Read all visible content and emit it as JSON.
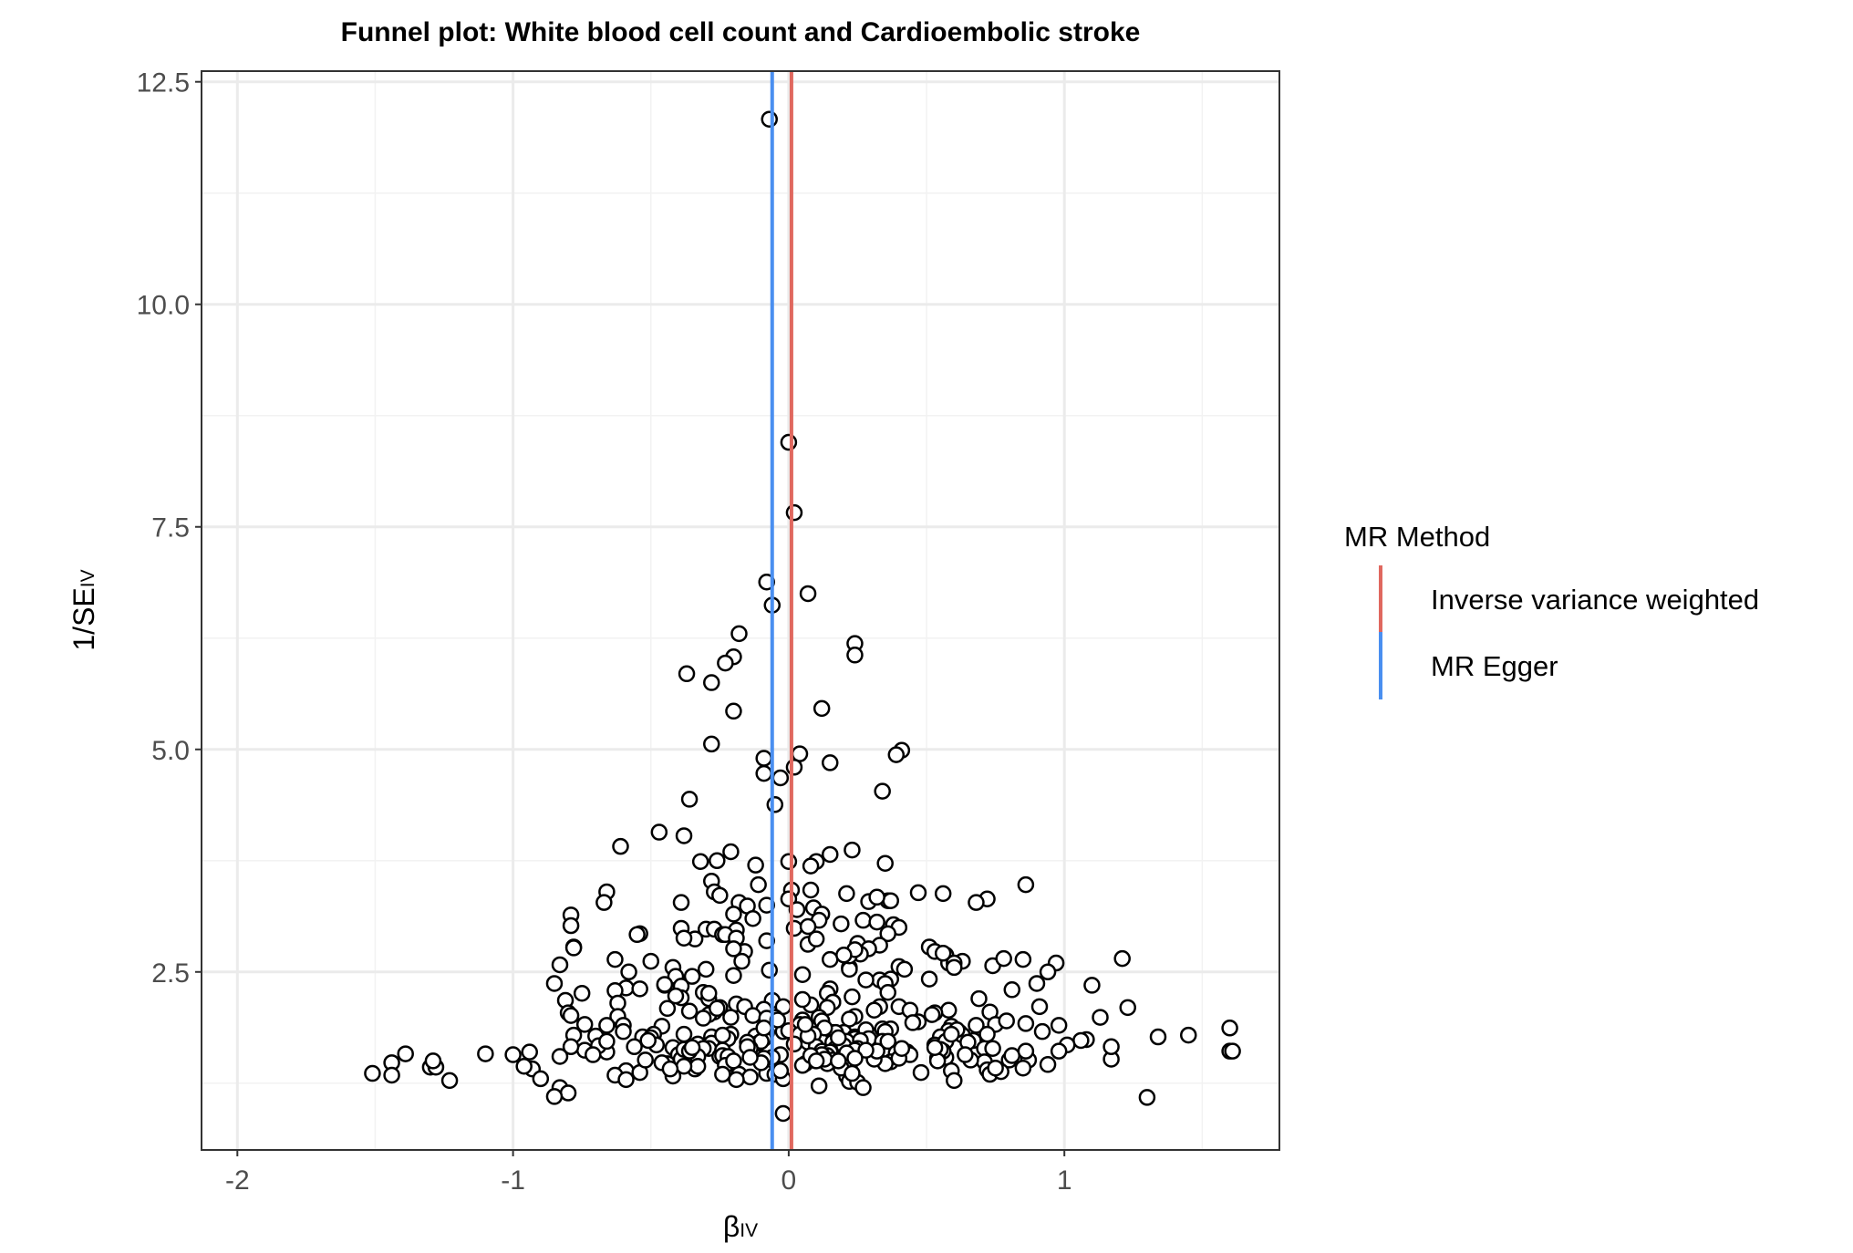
{
  "chart_data": {
    "type": "scatter",
    "title": "Funnel plot: White blood cell count and Cardioembolic stroke",
    "xlabel": {
      "main": "β",
      "sub": "IV"
    },
    "ylabel": {
      "main": "1/SE",
      "sub": "IV"
    },
    "xlim": [
      -2.13,
      1.78
    ],
    "ylim": [
      0.5,
      12.62
    ],
    "x_ticks": [
      {
        "value": -2,
        "label": "-2"
      },
      {
        "value": -1,
        "label": "-1"
      },
      {
        "value": 0,
        "label": "0"
      },
      {
        "value": 1,
        "label": "1"
      }
    ],
    "y_ticks": [
      {
        "value": 2.5,
        "label": "2.5"
      },
      {
        "value": 5.0,
        "label": "5.0"
      },
      {
        "value": 7.5,
        "label": "7.5"
      },
      {
        "value": 10.0,
        "label": "10.0"
      },
      {
        "value": 12.5,
        "label": "12.5"
      }
    ],
    "grid": true,
    "legend": {
      "title": "MR Method",
      "position": "right",
      "entries": [
        {
          "name": "Inverse variance weighted",
          "color": "#e0685f"
        },
        {
          "name": "MR Egger",
          "color": "#4a8ff0"
        }
      ]
    },
    "vlines": [
      {
        "name": "Inverse variance weighted",
        "x": 0.01,
        "color": "#e0685f"
      },
      {
        "name": "MR Egger",
        "x": -0.06,
        "color": "#4a8ff0"
      }
    ],
    "points_x": [
      -0.07,
      0.0,
      0.02,
      -0.08,
      0.07,
      -0.06,
      0.24,
      -0.18,
      -0.2,
      0.24,
      -0.37,
      -0.23,
      -0.28,
      0.12,
      -0.2,
      0.41,
      0.39,
      0.04,
      -0.28,
      -0.09,
      0.15,
      -0.09,
      0.02,
      -0.03,
      0.34,
      -0.36,
      -0.05,
      -0.47,
      -0.38,
      -0.61,
      0.15,
      0.23,
      -0.21,
      0.0,
      -0.26,
      0.1,
      -0.32,
      -0.12,
      -0.28,
      0.35,
      0.08,
      0.86,
      -0.66,
      0.47,
      0.56,
      0.72,
      0.68,
      -0.27,
      0.21,
      0.01,
      0.36,
      -0.11,
      0.08,
      -0.39,
      -0.79,
      0.09,
      0.29,
      -0.25,
      -0.18,
      0.0,
      0.37,
      -0.08,
      0.32,
      -0.15,
      -0.2,
      0.12,
      0.03,
      -0.67,
      -0.3,
      0.19,
      -0.13,
      0.27,
      0.11,
      0.38,
      -0.39,
      -0.54,
      -0.27,
      0.4,
      -0.79,
      -0.19,
      0.02,
      0.36,
      0.32,
      -0.24,
      0.07,
      -0.78,
      0.51,
      0.53,
      0.57,
      0.85,
      0.25,
      0.63,
      0.74,
      1.21,
      0.97,
      -0.23,
      -0.55,
      -0.19,
      0.58,
      -0.83,
      -0.34,
      -0.63,
      0.22,
      0.33,
      -0.08,
      0.4,
      0.78,
      0.6,
      -0.78,
      -0.38,
      0.15,
      0.51,
      0.94,
      0.07,
      0.29,
      -0.16,
      0.22,
      0.42,
      0.56,
      0.26,
      0.1,
      -0.5,
      -0.2,
      -0.42,
      -0.41,
      0.22,
      0.6,
      1.1,
      0.24,
      0.15,
      0.81,
      -0.85,
      -0.31,
      -0.35,
      0.05,
      0.33,
      0.37,
      -0.39,
      -0.07,
      0.2,
      -0.17,
      -0.3,
      0.35,
      0.14,
      0.9,
      -0.58,
      -0.59,
      -0.75,
      -0.54,
      -0.2,
      0.28,
      -0.45,
      -0.45,
      -0.39,
      0.36,
      -0.63,
      0.16,
      -0.29,
      -0.62,
      -0.81,
      0.16,
      0.69,
      0.08,
      -0.06,
      0.33,
      0.14,
      0.58,
      1.23,
      -0.8,
      0.4,
      -0.25,
      0.53,
      0.05,
      -0.27,
      -0.19,
      -0.62,
      -0.41,
      0.23,
      -0.79,
      -0.02,
      0.91,
      0.73,
      -0.16,
      -0.09,
      0.24,
      -0.13,
      0.31,
      0.44,
      -0.36,
      -0.29,
      -0.44,
      0.52,
      1.13,
      -0.31,
      -0.05,
      0.11,
      0.68,
      0.75,
      0.05,
      0.22,
      0.47,
      -0.08,
      0.86,
      0.79,
      -0.74,
      -0.46,
      0.59,
      0.98,
      -0.21,
      0.34,
      1.6,
      0.04,
      0.12,
      -0.78,
      0.2,
      -0.02,
      0.16,
      0.37,
      -0.08,
      -0.66,
      0.35,
      0.62,
      0.17,
      0.45,
      -0.28,
      0.13,
      0.58,
      -0.38,
      -0.21,
      0.09,
      0.63,
      -0.6,
      0.24,
      0.61,
      -0.6,
      0.0,
      -0.22,
      -0.53,
      -0.33,
      0.28,
      0.04,
      -0.09,
      -0.49,
      0.24,
      1.45,
      -0.7,
      0.92,
      0.07,
      0.29,
      0.34,
      1.08,
      0.55,
      -0.12,
      -0.11,
      0.16,
      0.24,
      -0.1,
      1.06,
      0.53,
      0.67,
      -0.28,
      0.02,
      0.36,
      -0.56,
      -0.15,
      0.1,
      0.21,
      -0.5,
      1.01,
      1.6,
      0.57,
      -0.14,
      -0.29,
      -0.74,
      0.65,
      -0.48,
      -0.15,
      -0.42,
      -0.31,
      0.12,
      0.43,
      -0.94,
      0.26,
      -0.79,
      0.17,
      -0.66,
      -0.03,
      0.71,
      -0.25,
      0.2,
      0.15,
      -1.0,
      0.14,
      0.25,
      0.39,
      -0.38,
      0.57,
      0.74,
      0.44,
      0.98,
      -0.33,
      0.56,
      0.8,
      0.54,
      -0.24,
      -0.24,
      0.12,
      -0.4,
      0.16,
      0.37,
      -0.44,
      -1.44,
      0.94,
      -0.83,
      0.87,
      -0.22,
      -0.06,
      0.4,
      0.71,
      -0.23,
      -0.46,
      0.06,
      -1.3,
      0.14,
      -0.34,
      -0.39,
      0.72,
      -0.08,
      0.22,
      -0.33,
      0.35,
      -0.38,
      -1.28,
      0.05,
      -1.29,
      -1.51,
      -0.93,
      -0.59,
      -0.18,
      -0.04,
      0.59,
      -1.44,
      0.73,
      -0.05,
      0.48,
      -0.54,
      -0.9,
      0.21,
      -1.23,
      -0.14,
      -0.24,
      -0.63,
      -0.42,
      0.6,
      -0.59,
      -0.02,
      0.22,
      -0.19,
      0.25,
      -0.83,
      0.11,
      0.27,
      -0.8,
      -0.85,
      1.3,
      -0.02,
      -0.29,
      -0.06,
      0.19,
      -0.69,
      -0.38,
      1.34,
      -0.26,
      0.41,
      1.17,
      -0.09,
      0.12,
      0.24,
      0.72,
      -0.1,
      1.61,
      0.55,
      0.54,
      0.85,
      -0.52,
      -0.36,
      0.31,
      0.32,
      -0.71,
      0.66,
      0.21,
      -0.14,
      -0.24,
      0.28,
      0.08,
      -0.2,
      -0.43,
      0.24,
      0.81,
      0.07,
      -0.66,
      -0.35,
      0.13,
      -1.39,
      -0.09,
      -0.04,
      0.06,
      -1.1,
      -0.03,
      0.18,
      0.53,
      0.18,
      -0.96,
      0.59,
      -0.51,
      0.77,
      1.17,
      0.86,
      0.1,
      0.23,
      0.64,
      0.75
    ],
    "points_y": [
      12.08,
      8.45,
      7.66,
      6.88,
      6.75,
      6.62,
      6.19,
      6.3,
      6.04,
      6.06,
      5.85,
      5.97,
      5.75,
      5.46,
      5.43,
      4.99,
      4.94,
      4.95,
      5.06,
      4.9,
      4.85,
      4.73,
      4.8,
      4.68,
      4.53,
      4.44,
      4.38,
      4.07,
      4.03,
      3.91,
      3.82,
      3.87,
      3.85,
      3.74,
      3.75,
      3.74,
      3.74,
      3.7,
      3.52,
      3.72,
      3.69,
      3.48,
      3.4,
      3.39,
      3.38,
      3.32,
      3.28,
      3.4,
      3.38,
      3.42,
      3.3,
      3.48,
      3.42,
      3.28,
      3.14,
      3.22,
      3.29,
      3.36,
      3.28,
      3.32,
      3.3,
      3.25,
      3.34,
      3.24,
      3.15,
      3.15,
      3.2,
      3.28,
      2.98,
      3.04,
      3.1,
      3.08,
      3.08,
      3.03,
      2.99,
      2.93,
      2.98,
      3.0,
      3.02,
      2.97,
      2.99,
      2.93,
      3.06,
      2.92,
      3.01,
      2.78,
      2.78,
      2.73,
      2.69,
      2.64,
      2.82,
      2.62,
      2.57,
      2.65,
      2.6,
      2.92,
      2.92,
      2.88,
      2.6,
      2.58,
      2.87,
      2.64,
      2.55,
      2.8,
      2.85,
      2.56,
      2.65,
      2.6,
      2.77,
      2.88,
      2.64,
      2.42,
      2.5,
      2.81,
      2.76,
      2.73,
      2.53,
      2.53,
      2.71,
      2.7,
      2.87,
      2.62,
      2.76,
      2.55,
      2.45,
      2.68,
      2.55,
      2.35,
      2.75,
      2.31,
      2.3,
      2.37,
      2.27,
      2.45,
      2.47,
      2.41,
      2.42,
      2.34,
      2.52,
      2.69,
      2.62,
      2.53,
      2.37,
      2.26,
      2.37,
      2.5,
      2.32,
      2.26,
      2.31,
      2.46,
      2.41,
      2.35,
      2.36,
      2.21,
      2.27,
      2.29,
      2.16,
      2.2,
      2.15,
      2.18,
      2.16,
      2.2,
      2.13,
      2.18,
      2.11,
      2.1,
      2.07,
      2.1,
      2.04,
      2.11,
      2.1,
      2.04,
      2.19,
      2.05,
      2.14,
      2.0,
      2.23,
      2.22,
      2.01,
      2.11,
      2.11,
      2.05,
      2.11,
      2.08,
      2.0,
      2.01,
      2.07,
      2.07,
      2.06,
      2.02,
      2.09,
      2.02,
      1.99,
      1.98,
      1.99,
      1.99,
      1.9,
      1.91,
      1.96,
      1.97,
      1.94,
      1.98,
      1.92,
      1.95,
      1.91,
      1.89,
      1.89,
      1.9,
      1.99,
      1.86,
      1.87,
      1.91,
      1.95,
      1.79,
      1.82,
      1.83,
      1.82,
      1.86,
      1.82,
      1.9,
      1.83,
      1.82,
      1.82,
      1.93,
      1.77,
      1.87,
      1.84,
      1.8,
      1.8,
      1.8,
      1.79,
      1.9,
      1.77,
      1.85,
      1.83,
      1.84,
      1.75,
      1.77,
      1.69,
      1.85,
      1.8,
      1.75,
      1.8,
      1.73,
      1.79,
      1.78,
      1.83,
      1.71,
      1.75,
      1.72,
      1.74,
      1.77,
      1.78,
      1.7,
      1.71,
      1.75,
      1.72,
      1.73,
      1.68,
      1.73,
      1.7,
      1.69,
      1.72,
      1.66,
      1.71,
      1.66,
      1.72,
      1.76,
      1.68,
      1.61,
      1.72,
      1.64,
      1.64,
      1.62,
      1.71,
      1.68,
      1.66,
      1.65,
      1.64,
      1.61,
      1.6,
      1.6,
      1.73,
      1.66,
      1.64,
      1.6,
      1.57,
      1.64,
      1.55,
      1.67,
      1.6,
      1.57,
      1.56,
      1.64,
      1.59,
      1.53,
      1.54,
      1.64,
      1.57,
      1.61,
      1.55,
      1.61,
      1.51,
      1.53,
      1.62,
      1.56,
      1.56,
      1.57,
      1.51,
      1.49,
      1.47,
      1.48,
      1.46,
      1.55,
      1.51,
      1.55,
      1.45,
      1.53,
      1.49,
      1.45,
      1.48,
      1.47,
      1.43,
      1.47,
      1.41,
      1.52,
      1.4,
      1.36,
      1.44,
      1.44,
      1.47,
      1.44,
      1.43,
      1.45,
      1.5,
      1.36,
      1.41,
      1.39,
      1.35,
      1.36,
      1.39,
      1.34,
      1.35,
      1.35,
      1.37,
      1.37,
      1.3,
      1.33,
      1.28,
      1.32,
      1.35,
      1.34,
      1.33,
      1.28,
      1.29,
      1.3,
      1.27,
      1.29,
      1.26,
      1.2,
      1.22,
      1.2,
      1.14,
      1.1,
      1.09,
      0.91,
      2.26,
      1.54,
      1.42,
      1.67,
      1.63,
      1.77,
      2.09,
      1.64,
      1.52,
      1.53,
      1.57,
      1.62,
      1.8,
      1.48,
      1.61,
      1.63,
      1.5,
      1.42,
      1.51,
      1.61,
      1.52,
      1.61,
      1.57,
      1.51,
      1.59,
      1.54,
      1.79,
      1.62,
      1.56,
      1.5,
      1.41,
      1.53,
      1.56,
      1.78,
      1.72,
      1.65,
      1.52,
      1.58,
      1.87,
      1.96,
      1.91,
      1.58,
      1.39,
      1.76,
      1.65,
      1.5,
      1.44,
      1.8,
      1.73,
      1.38,
      1.66,
      1.61,
      1.5,
      1.36,
      1.57,
      1.42,
      1.49,
      1.46,
      1.66,
      1.57,
      1.42,
      1.65,
      1.76,
      1.74,
      1.67,
      1.6,
      1.69,
      1.7,
      1.62,
      1.52,
      1.72,
      1.67,
      1.83,
      1.4,
      1.81,
      1.75,
      1.55,
      1.33,
      1.55,
      1.62,
      1.67,
      1.31,
      1.36,
      1.49,
      1.38,
      1.33,
      1.43,
      1.45,
      1.36,
      1.34
    ]
  }
}
